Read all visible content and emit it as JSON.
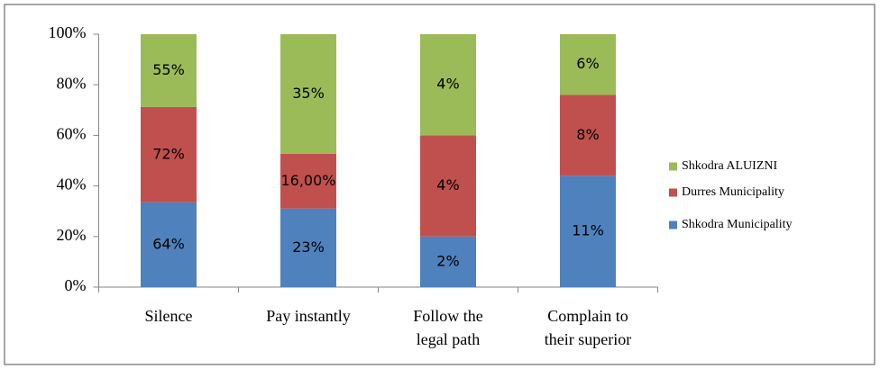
{
  "chart_data": {
    "type": "bar",
    "stacking": "percent",
    "categories": [
      "Silence",
      "Pay instantly",
      "Follow the\nlegal path",
      "Complain to\ntheir superior"
    ],
    "series": [
      {
        "name": "Shkodra Municipality",
        "color": "#4f81bd",
        "values": [
          64,
          23,
          2,
          11
        ],
        "value_labels": [
          "64%",
          "23%",
          "2%",
          "11%"
        ]
      },
      {
        "name": "Durres Municipality",
        "color": "#c0504d",
        "values": [
          72,
          16,
          4,
          8
        ],
        "value_labels": [
          "72%",
          "16,00%",
          "4%",
          "8%"
        ]
      },
      {
        "name": "Shkodra ALUIZNI",
        "color": "#9bbb59",
        "values": [
          55,
          35,
          4,
          6
        ],
        "value_labels": [
          "55%",
          "35%",
          "4%",
          "6%"
        ]
      }
    ],
    "ylim": [
      0,
      100
    ],
    "yticks": [
      {
        "value": 0,
        "label": "0%"
      },
      {
        "value": 20,
        "label": "20%"
      },
      {
        "value": 40,
        "label": "40%"
      },
      {
        "value": 60,
        "label": "60%"
      },
      {
        "value": 80,
        "label": "80%"
      },
      {
        "value": 100,
        "label": "100%"
      }
    ],
    "grid": false,
    "legend": "right"
  }
}
